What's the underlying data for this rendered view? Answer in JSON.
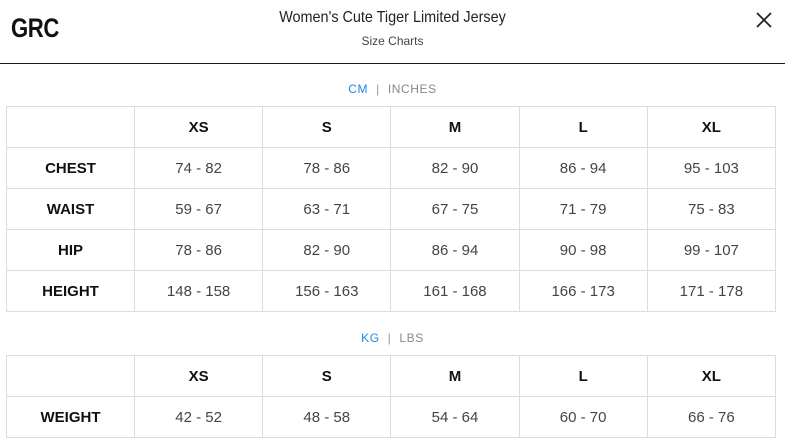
{
  "header": {
    "logo": "GRC",
    "title": "Women's Cute Tiger Limited Jersey",
    "subtitle": "Size Charts",
    "close_icon": "close-icon"
  },
  "length_toggle": {
    "active": "CM",
    "inactive": "INCHES"
  },
  "size_table": {
    "columns": [
      "XS",
      "S",
      "M",
      "L",
      "XL"
    ],
    "rows": [
      {
        "label": "CHEST",
        "values": [
          "74 - 82",
          "78 - 86",
          "82 - 90",
          "86 - 94",
          "95 - 103"
        ]
      },
      {
        "label": "WAIST",
        "values": [
          "59 - 67",
          "63 - 71",
          "67 - 75",
          "71 - 79",
          "75 - 83"
        ]
      },
      {
        "label": "HIP",
        "values": [
          "78 - 86",
          "82 - 90",
          "86 - 94",
          "90 - 98",
          "99 - 107"
        ]
      },
      {
        "label": "HEIGHT",
        "values": [
          "148 - 158",
          "156 - 163",
          "161 - 168",
          "166 - 173",
          "171 - 178"
        ]
      }
    ]
  },
  "weight_toggle": {
    "active": "KG",
    "inactive": "LBS"
  },
  "weight_table": {
    "columns": [
      "XS",
      "S",
      "M",
      "L",
      "XL"
    ],
    "rows": [
      {
        "label": "WEIGHT",
        "values": [
          "42 - 52",
          "48 - 58",
          "54 - 64",
          "60 - 70",
          "66 - 76"
        ]
      }
    ]
  },
  "colors": {
    "accent": "#1e88e5",
    "border": "#dcdcdc",
    "divider": "#1a1a1a"
  }
}
